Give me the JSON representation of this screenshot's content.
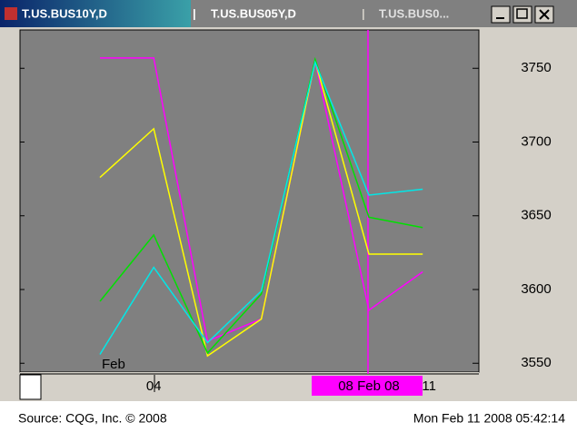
{
  "window": {
    "tabs": [
      "T.US.BUS10Y,D",
      "T.US.BUS05Y,D",
      "T.US.BUS0..."
    ]
  },
  "chart_data": {
    "type": "line",
    "categories": [
      "Feb",
      "04",
      null,
      null,
      null,
      "08 Feb 08",
      "11"
    ],
    "series": [
      {
        "color": "#ff00ff",
        "values": [
          3757,
          3757,
          3565,
          3580,
          3755,
          3586,
          3612
        ]
      },
      {
        "color": "#ffff00",
        "values": [
          3676,
          3709,
          3555,
          3580,
          3755,
          3624,
          3624
        ]
      },
      {
        "color": "#00e000",
        "values": [
          3592,
          3637,
          3557,
          3597,
          3756,
          3649,
          3642
        ]
      },
      {
        "color": "#00e8e8",
        "values": [
          3556,
          3615,
          3564,
          3599,
          3754,
          3664,
          3668
        ]
      }
    ],
    "ylim": [
      3544,
      3776
    ],
    "yticks": [
      3550,
      3600,
      3650,
      3700,
      3750
    ]
  },
  "footer": {
    "source": "Source: CQG, Inc. © 2008",
    "timestamp": "Mon Feb 11 2008 05:42:14"
  }
}
